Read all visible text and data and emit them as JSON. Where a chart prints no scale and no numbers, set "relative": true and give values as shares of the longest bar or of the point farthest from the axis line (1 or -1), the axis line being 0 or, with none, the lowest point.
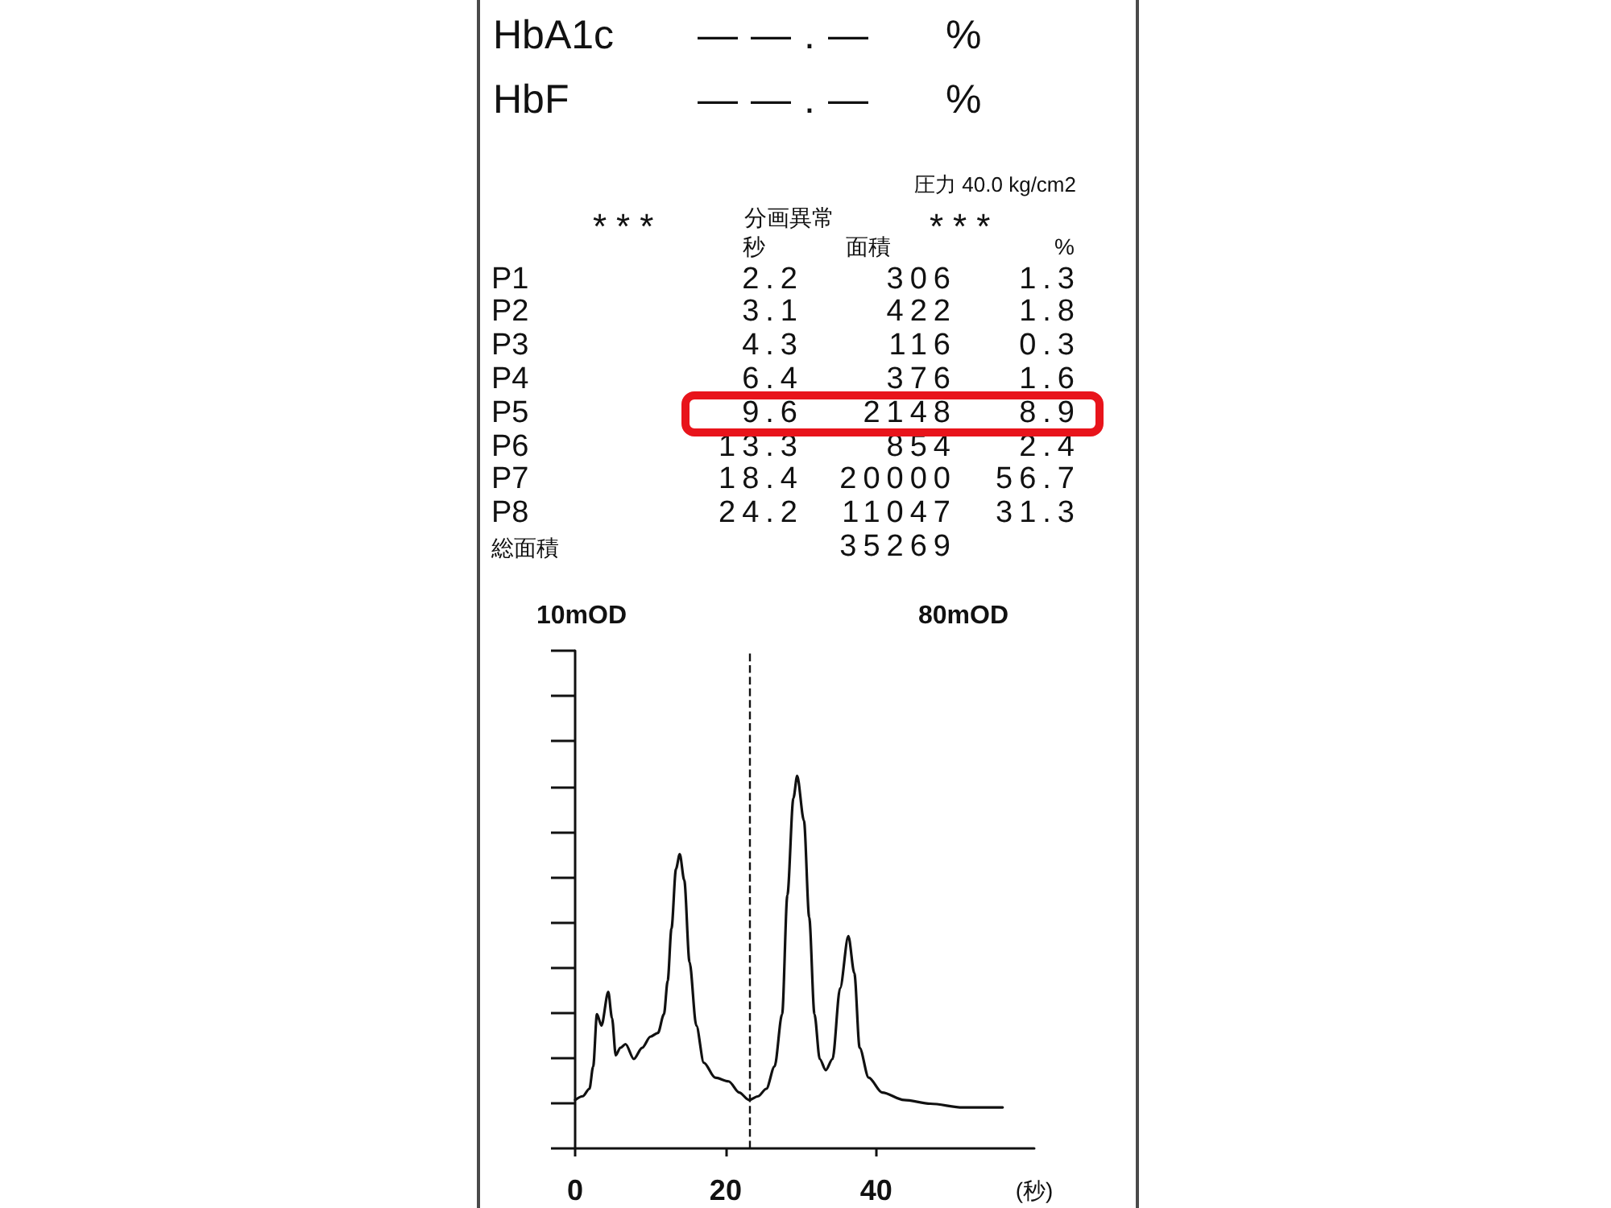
{
  "chart_data": {
    "type": "line",
    "xlabel": "(秒)",
    "annotations": [
      "HbA1c",
      "——.—",
      "%",
      "HbF",
      "——.—",
      "%",
      "圧力 40.0 kg/cm2",
      "***",
      "分画異常",
      "***",
      "秒",
      "面積",
      "%",
      "P1",
      "2.2",
      "306",
      "1.3",
      "P2",
      "3.1",
      "422",
      "1.8",
      "P3",
      "4.3",
      "116",
      "0.3",
      "P4",
      "6.4",
      "376",
      "1.6",
      "P5",
      "9.6",
      "2148",
      "8.9",
      "P6",
      "13.3",
      "854",
      "2.4",
      "P7",
      "18.4",
      "20000",
      "56.7",
      "P8",
      "24.2",
      "11047",
      "31.3",
      "総面積",
      "35269",
      "10mOD",
      "80mOD"
    ],
    "x": [
      0,
      1.0,
      1.9,
      2.4,
      2.9,
      3.5,
      4.4,
      4.9,
      5.4,
      6.0,
      6.7,
      7.8,
      8.9,
      10.0,
      11.0,
      11.8,
      12.3,
      12.8,
      13.4,
      13.9,
      14.5,
      15.2,
      16.1,
      17.1,
      18.6,
      20.4,
      21.8,
      23.1,
      24.3,
      25.4,
      26.5,
      27.5,
      28.2,
      29.0,
      29.5,
      30.4,
      31.1,
      31.8,
      32.5,
      33.3,
      34.2,
      35.2,
      36.3,
      37.1,
      37.8,
      39.0,
      40.8,
      43.7,
      47.2,
      51.5,
      56.8
    ],
    "values": [
      0.13,
      0.14,
      0.16,
      0.22,
      0.36,
      0.33,
      0.42,
      0.35,
      0.25,
      0.27,
      0.28,
      0.24,
      0.27,
      0.3,
      0.31,
      0.36,
      0.45,
      0.59,
      0.75,
      0.79,
      0.72,
      0.5,
      0.33,
      0.23,
      0.19,
      0.18,
      0.15,
      0.13,
      0.14,
      0.16,
      0.22,
      0.36,
      0.68,
      0.94,
      1,
      0.88,
      0.62,
      0.36,
      0.24,
      0.21,
      0.24,
      0.43,
      0.57,
      0.47,
      0.27,
      0.19,
      0.15,
      0.13,
      0.12,
      0.11,
      0.11
    ],
    "color": "#111111",
    "relative": true,
    "xlim": [
      0,
      61
    ],
    "xticks": [
      0,
      20,
      40
    ],
    "ref_lines": [
      {
        "axis": "x",
        "value": 23.2,
        "line_style": "dashed"
      }
    ],
    "marker": "none",
    "line_style": "solid",
    "grid": false
  }
}
